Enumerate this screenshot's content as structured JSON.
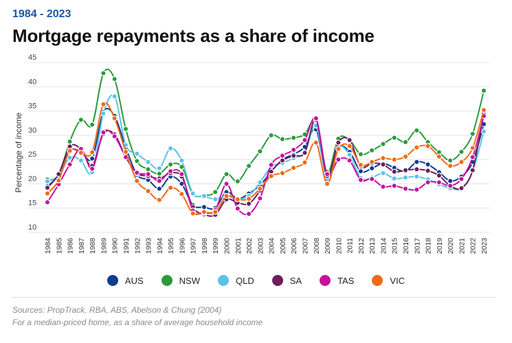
{
  "header": {
    "subtitle": "1984 - 2023",
    "title": "Mortgage repayments as a share of income"
  },
  "footer": {
    "source": "Sources: PropTrack, RBA, ABS, Abelson & Chung (2004)",
    "note": "For a median-priced home, as a share of average household income"
  },
  "chart_data": {
    "type": "line",
    "title": "Mortgage repayments as a share of income",
    "subtitle": "1984 - 2023",
    "ylabel": "Percentage of income",
    "xlabel": "",
    "ylim": [
      10,
      45
    ],
    "yticks": [
      10,
      15,
      20,
      25,
      30,
      35,
      40,
      45
    ],
    "grid": true,
    "legend_position": "bottom",
    "x": [
      "1984",
      "1985",
      "1986",
      "1987",
      "1988",
      "1989",
      "1990",
      "1991",
      "1992",
      "1993",
      "1994",
      "1995",
      "1996",
      "1997",
      "1998",
      "1999",
      "2000",
      "2001",
      "2002",
      "2003",
      "2004",
      "2005",
      "2006",
      "2007",
      "2008",
      "2009",
      "2010",
      "2011",
      "2012",
      "2013",
      "2014",
      "2015",
      "2016",
      "2017",
      "2018",
      "2019",
      "2020",
      "2021",
      "2022",
      "2023"
    ],
    "series": [
      {
        "name": "AUS",
        "color": "#0e3d8f",
        "values": [
          19.5,
          21.8,
          26.8,
          26.6,
          25.2,
          34.8,
          34.0,
          27.5,
          21.9,
          20.8,
          19.0,
          21.5,
          20.0,
          15.6,
          15.2,
          15.0,
          18.3,
          16.9,
          18.0,
          19.7,
          22.5,
          25.0,
          26.1,
          27.6,
          31.2,
          21.5,
          27.5,
          26.6,
          22.6,
          23.2,
          24.2,
          23.3,
          22.6,
          24.5,
          24.0,
          22.4,
          20.6,
          21.5,
          24.5,
          32.3
        ]
      },
      {
        "name": "NSW",
        "color": "#2b9a3c",
        "values": [
          20.9,
          21.6,
          28.7,
          33.2,
          32.2,
          42.8,
          41.6,
          31.3,
          24.7,
          23.0,
          22.1,
          24.0,
          23.5,
          17.9,
          17.6,
          18.3,
          22.0,
          20.5,
          23.7,
          26.7,
          30.0,
          29.2,
          29.5,
          30.2,
          33.0,
          22.4,
          29.3,
          29.0,
          26.1,
          26.9,
          28.2,
          29.5,
          28.6,
          31.0,
          28.6,
          26.5,
          24.8,
          26.6,
          30.3,
          39.2
        ]
      },
      {
        "name": "QLD",
        "color": "#5bc3e8",
        "values": [
          20.5,
          21.7,
          25.4,
          24.8,
          22.4,
          34.5,
          38.0,
          28.0,
          26.2,
          24.5,
          23.2,
          27.3,
          24.8,
          18.0,
          17.5,
          16.8,
          17.5,
          16.9,
          17.5,
          20.3,
          23.5,
          24.3,
          25.3,
          26.5,
          32.0,
          21.0,
          27.5,
          26.0,
          21.2,
          21.3,
          22.2,
          21.1,
          21.3,
          21.5,
          20.9,
          19.9,
          19.1,
          19.1,
          22.6,
          30.8
        ]
      },
      {
        "name": "SA",
        "color": "#6b1d5c",
        "values": [
          19.2,
          22.0,
          27.7,
          27.1,
          23.7,
          30.3,
          30.2,
          25.5,
          22.2,
          21.6,
          21.1,
          22.2,
          21.5,
          15.2,
          13.7,
          13.6,
          16.8,
          16.1,
          15.9,
          18.6,
          22.5,
          24.8,
          25.8,
          26.4,
          33.2,
          21.6,
          28.5,
          29.0,
          23.6,
          24.2,
          24.0,
          22.5,
          22.8,
          23.0,
          22.7,
          21.7,
          19.6,
          19.1,
          22.8,
          34.5
        ]
      },
      {
        "name": "TAS",
        "color": "#c4129e",
        "values": [
          16.2,
          19.9,
          24.0,
          27.2,
          23.1,
          30.6,
          29.8,
          25.5,
          22.3,
          22.0,
          20.6,
          22.6,
          22.0,
          14.5,
          14.0,
          14.6,
          20.0,
          14.9,
          13.8,
          17.0,
          23.9,
          25.8,
          27.0,
          29.0,
          33.5,
          22.0,
          25.0,
          24.8,
          20.8,
          21.0,
          19.4,
          19.6,
          19.0,
          18.8,
          20.3,
          20.3,
          19.6,
          21.0,
          25.5,
          34.0
        ]
      },
      {
        "name": "VIC",
        "color": "#ef6a16",
        "values": [
          18.0,
          20.7,
          26.8,
          26.4,
          26.5,
          36.4,
          33.5,
          26.6,
          20.6,
          18.5,
          16.7,
          19.2,
          17.9,
          13.9,
          14.2,
          14.2,
          17.5,
          16.8,
          16.9,
          19.0,
          21.6,
          22.2,
          23.3,
          24.4,
          28.5,
          20.0,
          27.2,
          27.8,
          23.9,
          24.5,
          25.3,
          25.0,
          25.6,
          27.5,
          27.8,
          25.6,
          23.7,
          24.5,
          27.4,
          35.2
        ]
      }
    ]
  }
}
